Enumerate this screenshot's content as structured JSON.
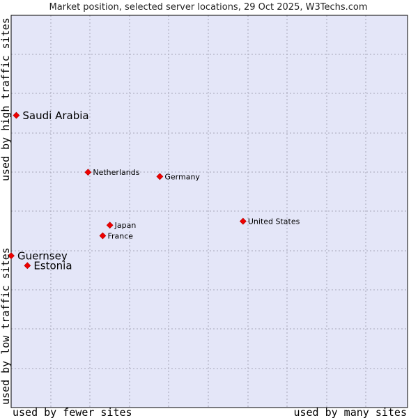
{
  "chart_data": {
    "type": "scatter",
    "title": "Market position, selected server locations, 29 Oct 2025, W3Techs.com",
    "xlabel_left": "used by fewer sites",
    "xlabel_right": "used by many sites",
    "ylabel_top": "used by high traffic sites",
    "ylabel_bottom": "used by low traffic sites",
    "xlim": [
      0,
      100
    ],
    "ylim": [
      0,
      100
    ],
    "grid": true,
    "points": [
      {
        "name": "Saudi Arabia",
        "x": 1.3,
        "y": 74.5,
        "emphasis": true
      },
      {
        "name": "Netherlands",
        "x": 19.4,
        "y": 60.0,
        "emphasis": false
      },
      {
        "name": "Germany",
        "x": 37.5,
        "y": 58.9,
        "emphasis": false
      },
      {
        "name": "United States",
        "x": 58.5,
        "y": 47.5,
        "emphasis": false
      },
      {
        "name": "Japan",
        "x": 24.9,
        "y": 46.5,
        "emphasis": false
      },
      {
        "name": "France",
        "x": 23.1,
        "y": 43.8,
        "emphasis": false
      },
      {
        "name": "Guernsey",
        "x": 0.0,
        "y": 38.7,
        "emphasis": true
      },
      {
        "name": "Estonia",
        "x": 4.1,
        "y": 36.2,
        "emphasis": true
      }
    ]
  },
  "colors": {
    "plot_bg": "#e4e6f8",
    "grid": "#a6a6b8",
    "marker": "#ee0000",
    "frame": "#000000"
  }
}
